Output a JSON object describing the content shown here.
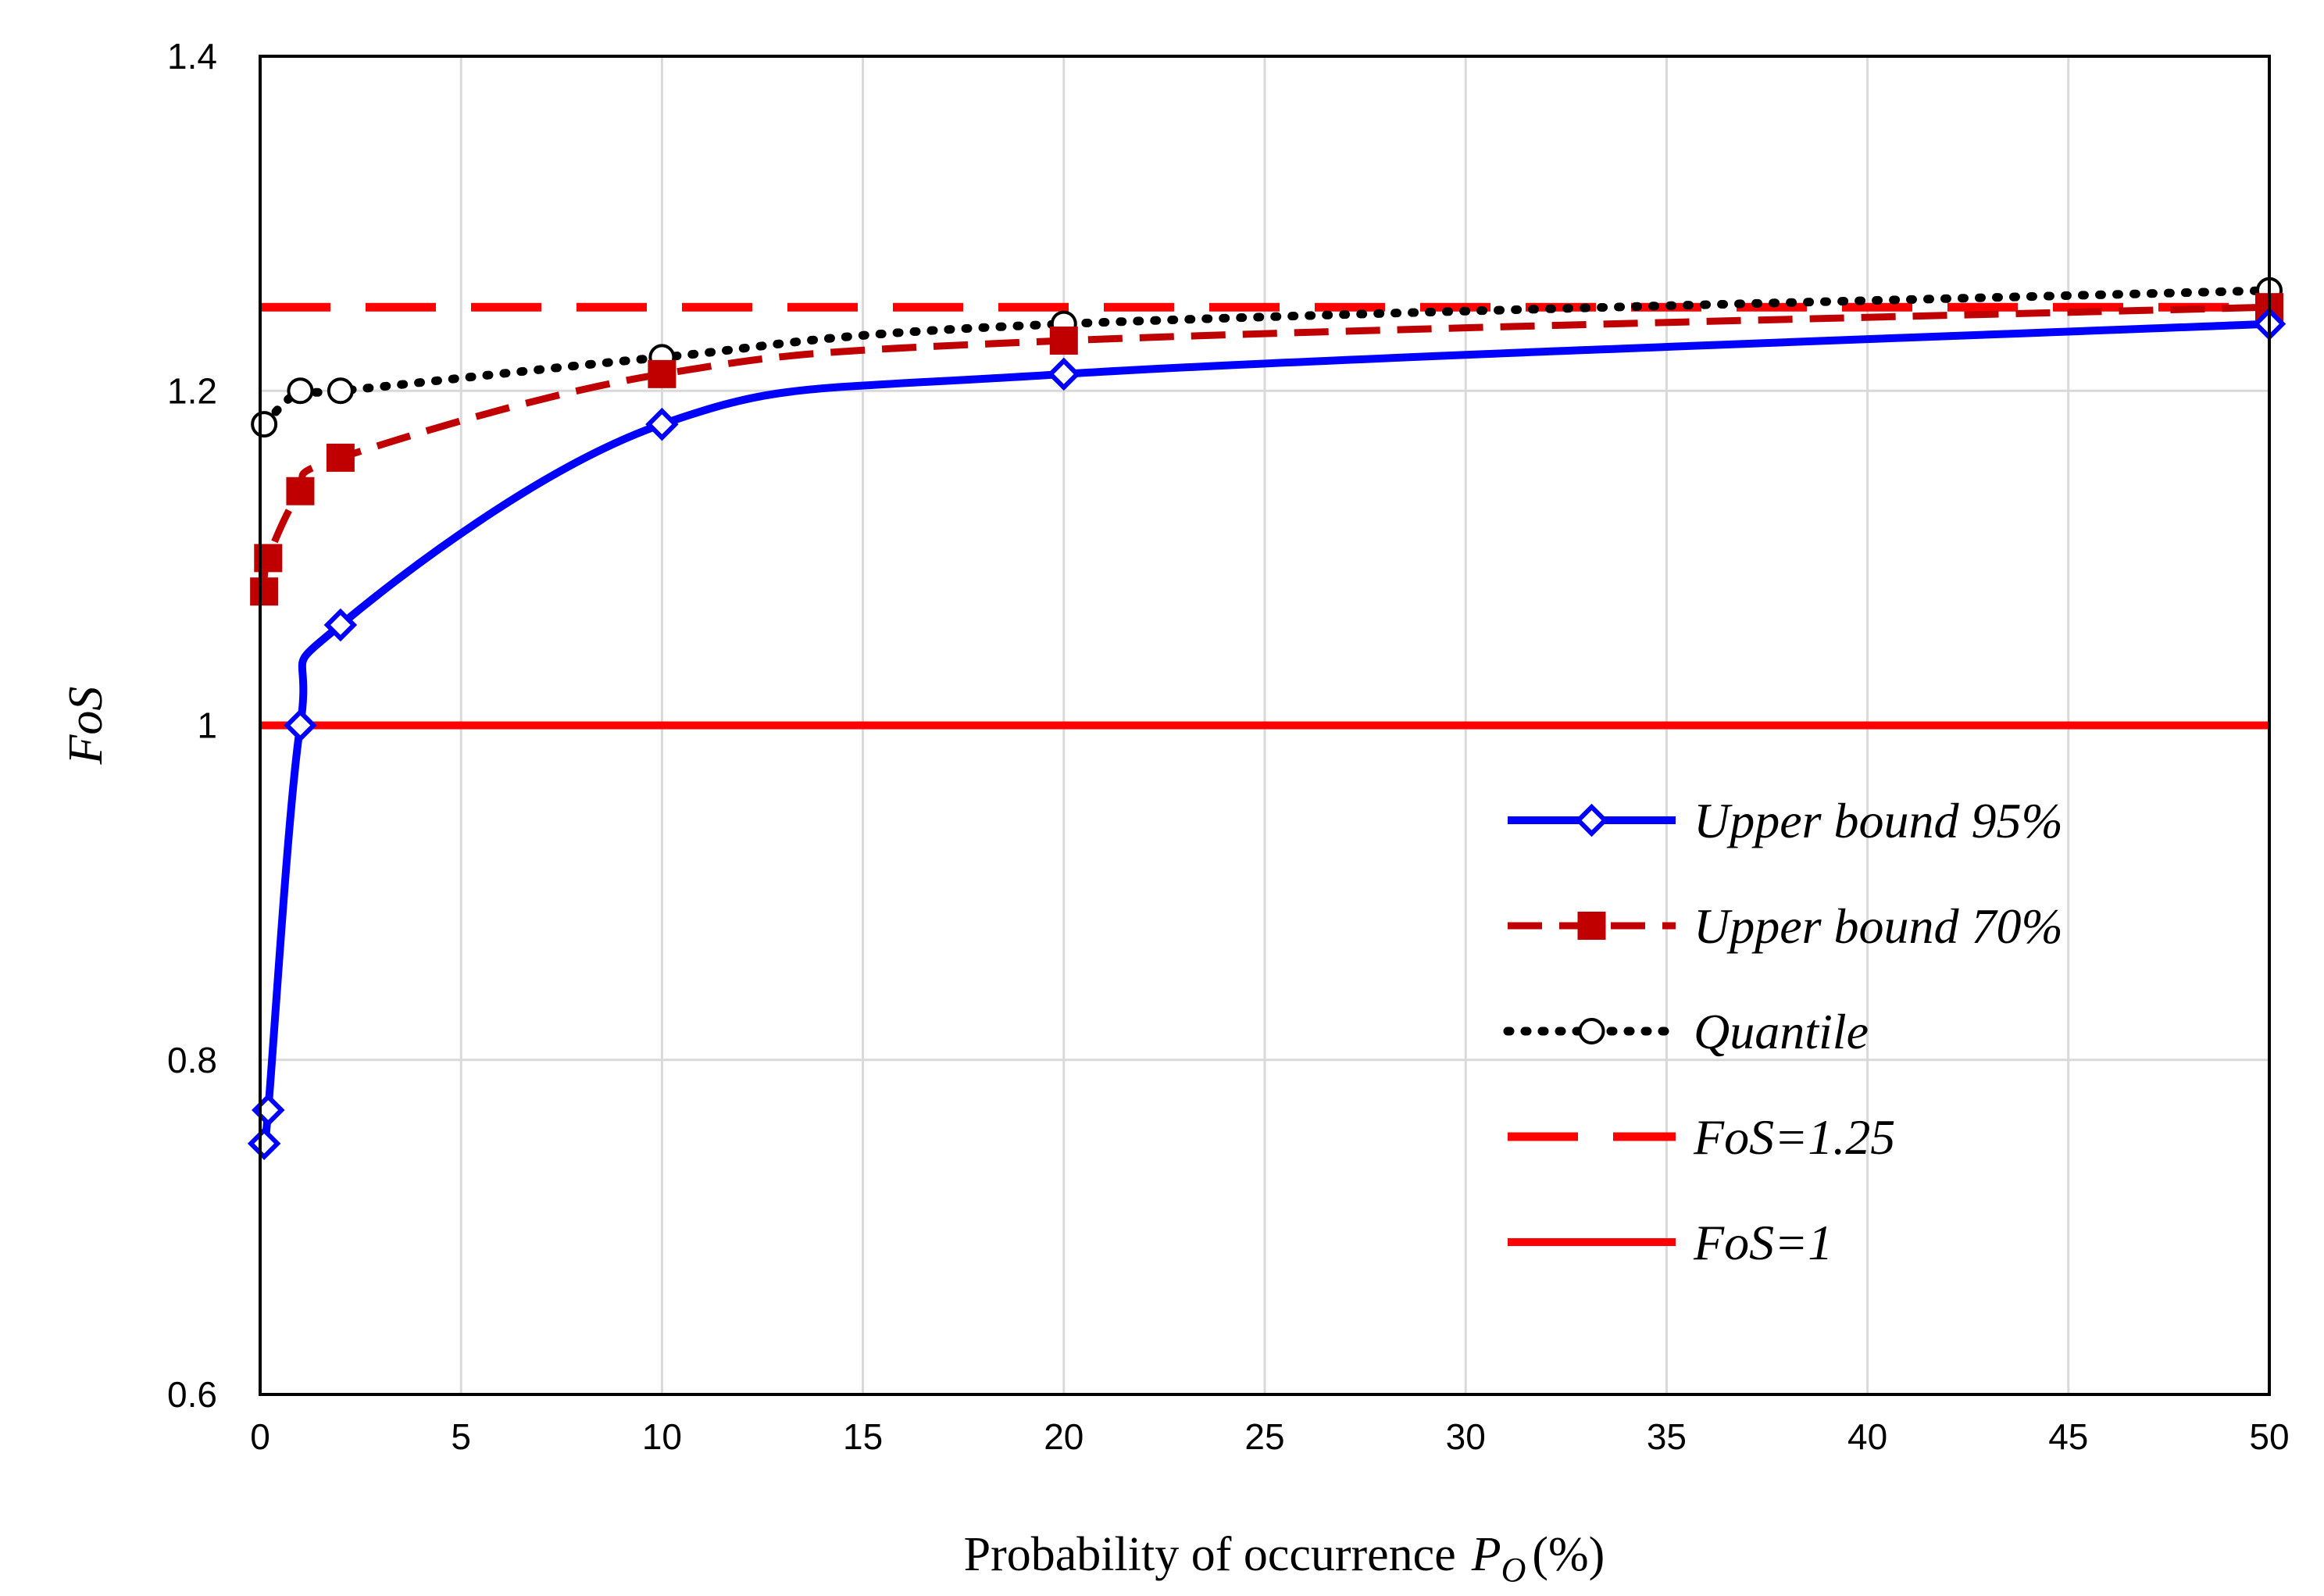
{
  "chart_data": {
    "type": "line",
    "title": "",
    "xlabel": "Probability  of occurrence",
    "xlabel_symbol": "P",
    "xlabel_subscript": "O",
    "xlabel_unit": "(%)",
    "ylabel": "FoS",
    "xlim": [
      0,
      50
    ],
    "ylim": [
      0.6,
      1.4
    ],
    "xticks": [
      0,
      5,
      10,
      15,
      20,
      25,
      30,
      35,
      40,
      45,
      50
    ],
    "yticks": [
      0.6,
      0.8,
      1,
      1.2,
      1.4
    ],
    "ytick_labels": [
      "0.6",
      "0.8",
      "1",
      "1.2",
      "1.4"
    ],
    "grid": true,
    "legend_position": "bottom-right",
    "series": [
      {
        "name": "Upper bound 95%",
        "color": "#0000ff",
        "style": "solid",
        "marker": "diamond-open",
        "x": [
          0.1,
          0.2,
          1,
          2,
          10,
          20,
          50
        ],
        "y": [
          0.75,
          0.77,
          1.0,
          1.06,
          1.18,
          1.21,
          1.24
        ]
      },
      {
        "name": "Upper bound 70%",
        "color": "#c00000",
        "style": "dashed",
        "marker": "square-filled",
        "x": [
          0.1,
          0.2,
          1,
          2,
          10,
          20,
          50
        ],
        "y": [
          1.08,
          1.1,
          1.14,
          1.16,
          1.21,
          1.23,
          1.25
        ]
      },
      {
        "name": "Quantile",
        "color": "#000000",
        "style": "dotted",
        "marker": "circle-open",
        "x": [
          0.1,
          1,
          2,
          10,
          20,
          50
        ],
        "y": [
          1.18,
          1.2,
          1.2,
          1.22,
          1.24,
          1.26
        ]
      },
      {
        "name": "FoS=1.25",
        "color": "#ff0000",
        "style": "long-dash",
        "marker": "none",
        "x": [
          0,
          50
        ],
        "y": [
          1.25,
          1.25
        ]
      },
      {
        "name": "FoS=1",
        "color": "#ff0000",
        "style": "solid",
        "marker": "none",
        "x": [
          0,
          50
        ],
        "y": [
          1.0,
          1.0
        ]
      }
    ]
  }
}
